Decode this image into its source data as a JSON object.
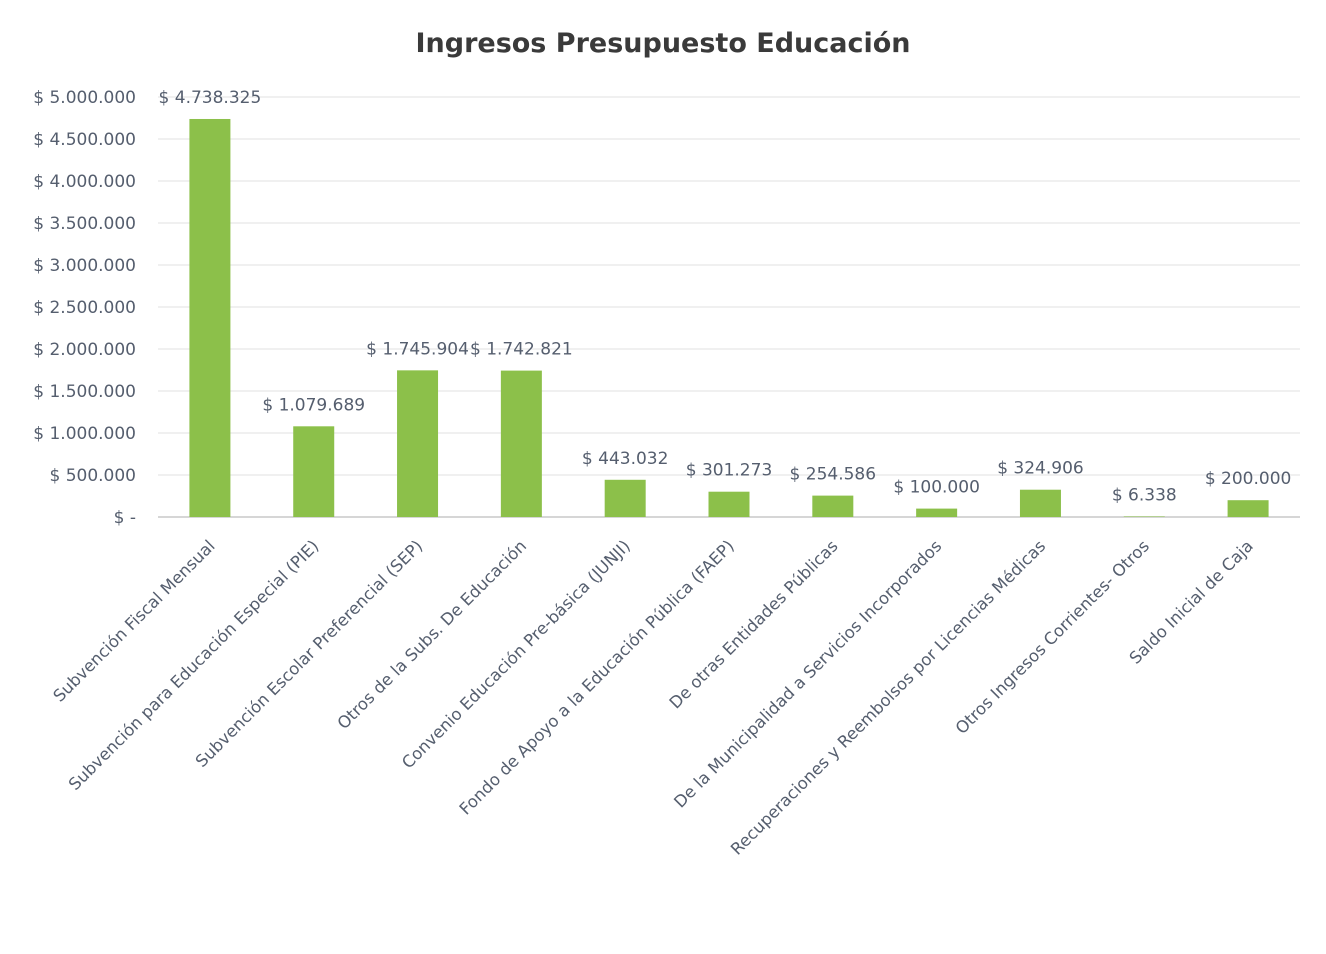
{
  "chart_data": {
    "type": "bar",
    "title": "Ingresos Presupuesto Educación",
    "categories": [
      "Subvención Fiscal Mensual",
      "Subvención para Educación Especial (PIE)",
      "Subvención Escolar Preferencial (SEP)",
      "Otros de la Subs. De Educación",
      "Convenio Educación Pre-básica (JUNJI)",
      "Fondo de Apoyo a la Educación Pública (FAEP)",
      "De otras Entidades Públicas",
      "De la Municipalidad a Servicios Incorporados",
      "Recuperaciones y Reembolsos por Licencias Médicas",
      "Otros Ingresos Corrientes- Otros",
      "Saldo Inicial de Caja"
    ],
    "values": [
      4738325,
      1079689,
      1745904,
      1742821,
      443032,
      301273,
      254586,
      100000,
      324906,
      6338,
      200000
    ],
    "data_labels": [
      "$ 4.738.325",
      "$ 1.079.689",
      "$ 1.745.904",
      "$ 1.742.821",
      "$ 443.032",
      "$ 301.273",
      "$ 254.586",
      "$ 100.000",
      "$ 324.906",
      "$ 6.338",
      "$ 200.000"
    ],
    "y_ticks": [
      0,
      500000,
      1000000,
      1500000,
      2000000,
      2500000,
      3000000,
      3500000,
      4000000,
      4500000,
      5000000
    ],
    "y_tick_labels": [
      "$ -",
      "$ 500.000",
      "$ 1.000.000",
      "$ 1.500.000",
      "$ 2.000.000",
      "$ 2.500.000",
      "$ 3.000.000",
      "$ 3.500.000",
      "$ 4.000.000",
      "$ 4.500.000",
      "$ 5.000.000"
    ],
    "ylim": [
      0,
      5000000
    ],
    "grid": true,
    "legend": "none",
    "colors": {
      "bar": "#8cc04a",
      "grid": "#e2e2e2",
      "axis": "#c9c9c9",
      "text": "#555e6e",
      "title": "#3a3a3a"
    }
  }
}
